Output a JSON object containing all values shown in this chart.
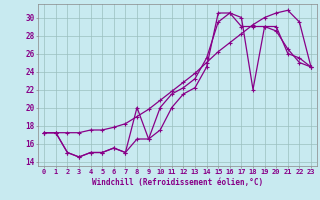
{
  "title": "",
  "xlabel": "Windchill (Refroidissement éolien,°C)",
  "bg_color": "#c8eaf0",
  "line_color": "#880088",
  "grid_color": "#9bbfbf",
  "xlim": [
    -0.5,
    23.5
  ],
  "ylim": [
    13.5,
    31.5
  ],
  "xticks": [
    0,
    1,
    2,
    3,
    4,
    5,
    6,
    7,
    8,
    9,
    10,
    11,
    12,
    13,
    14,
    15,
    16,
    17,
    18,
    19,
    20,
    21,
    22,
    23
  ],
  "yticks": [
    14,
    16,
    18,
    20,
    22,
    24,
    26,
    28,
    30
  ],
  "line1_x": [
    0,
    1,
    2,
    3,
    4,
    5,
    6,
    7,
    8,
    9,
    10,
    11,
    12,
    13,
    14,
    15,
    16,
    17,
    18,
    19,
    20,
    21,
    22,
    23
  ],
  "line1_y": [
    17.2,
    17.2,
    17.2,
    17.2,
    17.5,
    17.5,
    17.8,
    18.2,
    19.0,
    19.8,
    20.8,
    21.8,
    22.8,
    23.8,
    25.0,
    26.2,
    27.2,
    28.2,
    29.2,
    30.0,
    30.5,
    30.8,
    29.5,
    24.5
  ],
  "line2_x": [
    0,
    1,
    2,
    3,
    4,
    5,
    6,
    7,
    8,
    9,
    10,
    11,
    12,
    13,
    14,
    15,
    16,
    17,
    18,
    19,
    20,
    21,
    22,
    23
  ],
  "line2_y": [
    17.2,
    17.2,
    15.0,
    14.5,
    15.0,
    15.0,
    15.5,
    15.0,
    20.0,
    16.5,
    17.5,
    20.0,
    21.5,
    22.2,
    24.5,
    30.5,
    30.5,
    30.0,
    22.0,
    29.0,
    29.0,
    26.0,
    25.5,
    24.5
  ],
  "line3_x": [
    0,
    1,
    2,
    3,
    4,
    5,
    6,
    7,
    8,
    9,
    10,
    11,
    12,
    13,
    14,
    15,
    16,
    17,
    18,
    19,
    20,
    21,
    22,
    23
  ],
  "line3_y": [
    17.2,
    17.2,
    15.0,
    14.5,
    15.0,
    15.0,
    15.5,
    15.0,
    16.5,
    16.5,
    20.0,
    21.5,
    22.2,
    23.2,
    25.5,
    29.5,
    30.5,
    29.0,
    29.0,
    29.0,
    28.5,
    26.5,
    25.0,
    24.5
  ]
}
